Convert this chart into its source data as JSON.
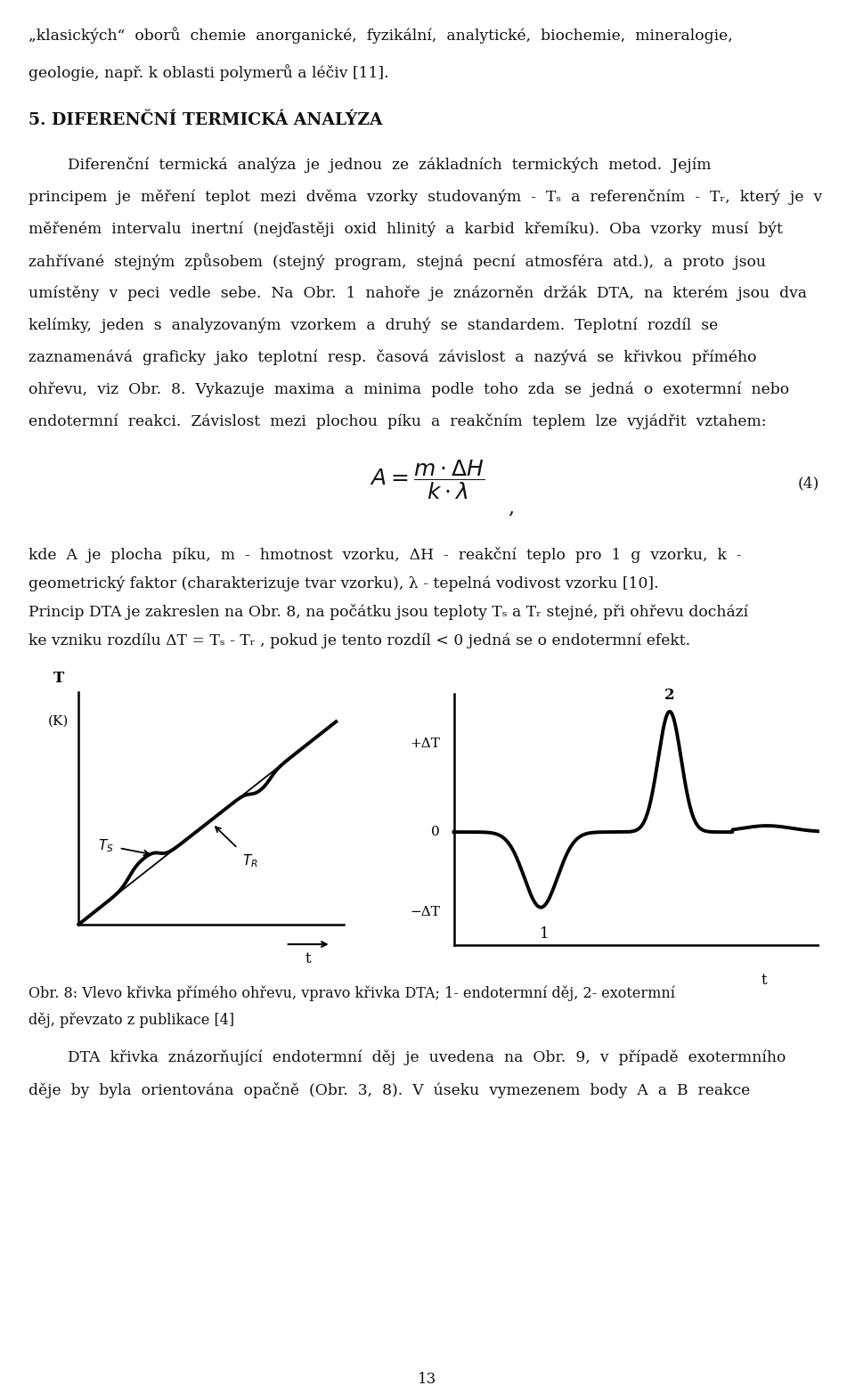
{
  "bg_color": "#ffffff",
  "text_color": "#1a1a1a",
  "page_width": 9.6,
  "page_height": 15.65,
  "line1": "„klasických“  oborů  chemie  anorganické,  fyzikální,  analytické,  biochemie,  mineralogie,",
  "line2": "geologie, např. k oblasti polymerů a léčiv [11].",
  "heading": "5. DIFERENČNÍ TERMICKÁ ANALÝZA",
  "para_indent": "        Diferenční  termická  analýza  je  jednou  ze  základních  termických  metod.  Jejím",
  "p2": "principem  je  měření  teplot  mezi  dvěma  vzorky  studovaným  -  Tₛ  a  referenčním  -  Tᵣ,  který  je  v",
  "p3": "měřeném  intervalu  inertní  (nejďastěji  oxid  hlinitý  a  karbid  křemíku).  Oba  vzorky  musí  být",
  "p4": "zahřívané  stejným  způsobem  (stejný  program,  stejná  pecní  atmosféra  atd.),  a  proto  jsou",
  "p5": "umístěny  v  peci  vedle  sebe.  Na  Obr.  1  nahoře  je  znázorněn  držák  DTA,  na  kterém  jsou  dva",
  "p6": "kelímky,  jeden  s  analyzovaným  vzorkem  a  druhý  se  standardem.  Teplotní  rozdíl  se",
  "p7": "zaznamenává  graficky  jako  teplotní  resp.  časová  závislost  a  nazývá  se  křivkou  přímého",
  "p8": "ohřevu,  viz  Obr.  8.  Vykazuje  maxima  a  minima  podle  toho  zda  se  jedná  o  exotermní  nebo",
  "p9": "endotermní  reakci.  Závislost  mezi  plochou  píku  a  reakčním  teplem  lze  vyjádřit  vztahem:",
  "formula_label": "(4)",
  "legend1": "kde  A  je  plocha  píku,  m  -  hmotnost  vzorku,  ΔH  -  reakční  teplo  pro  1  g  vzorku,  k  -",
  "legend2": "geometrický faktor (charakterizuje tvar vzorku), λ - tepelná vodivost vzorku [10].",
  "pr1": "Princip DTA je zakreslen na Obr. 8, na počátku jsou teploty Tₛ a Tᵣ stejné, při ohřevu dochází",
  "pr2": "ke vzniku rozdílu ΔT = Tₛ - Tᵣ , pokud je tento rozdíl < 0 jedná se o endotermní efekt.",
  "caption1": "Obr. 8: Vlevo křivka přímého ohřevu, vpravo křivka DTA; 1- endotermní děj, 2- exotermní",
  "caption2": "děj, převzato z publikace [4]",
  "bot1": "        DTA  křivka  znázorňující  endotermní  děj  je  uvedena  na  Obr.  9,  v  případě  exotermního",
  "bot2": "děje  by  byla  orientována  opačně  (Obr.  3,  8).  V  úseku  vymezenem  body  A  a  B  reakce",
  "page_number": "13"
}
